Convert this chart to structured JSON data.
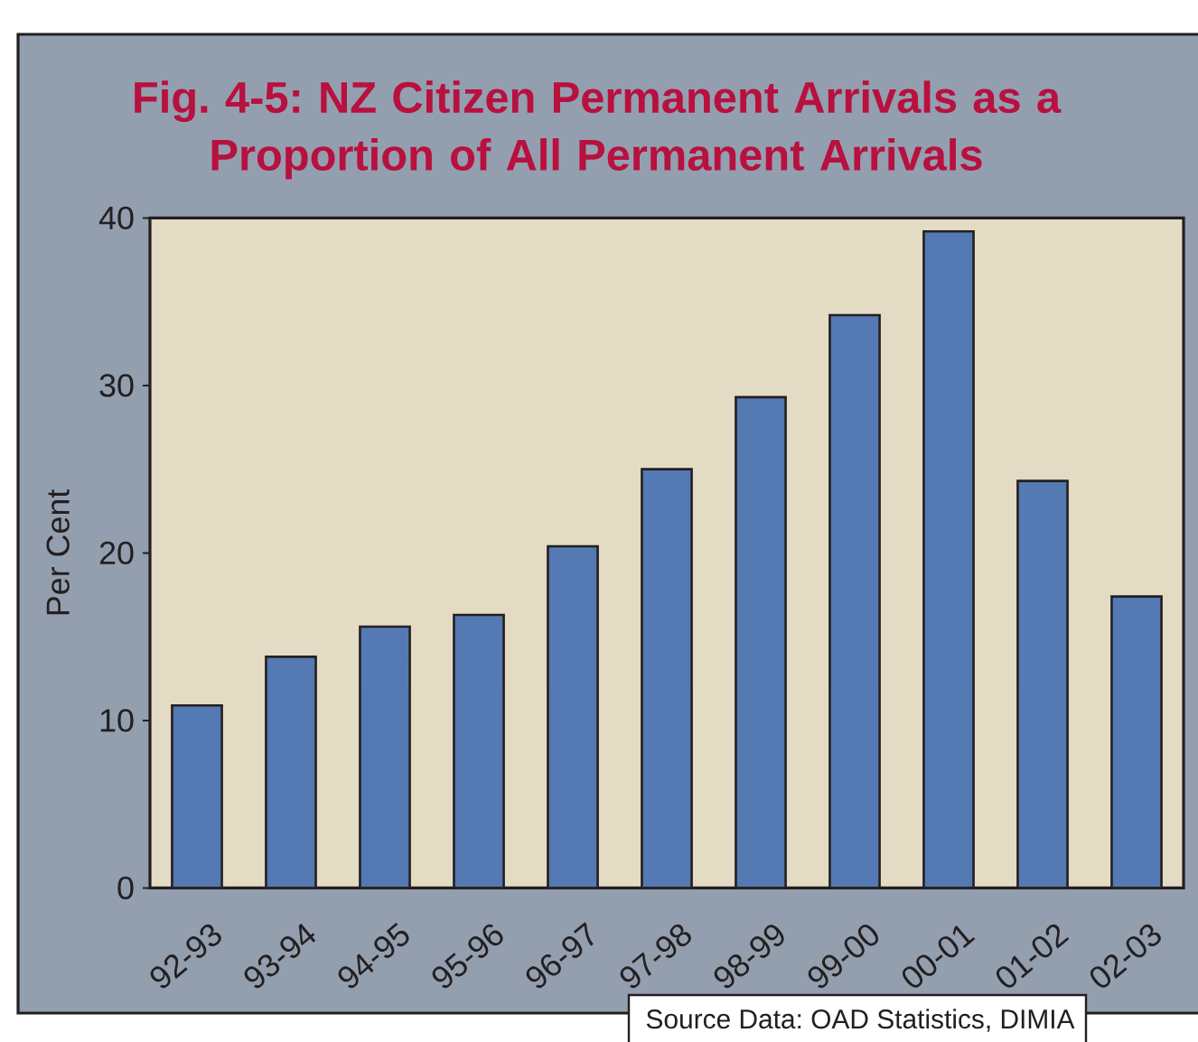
{
  "chart_data": {
    "type": "bar",
    "title": "Fig. 4-5: NZ Citizen Permanent Arrivals as a Proportion of All Permanent Arrivals",
    "ylabel": "Per Cent",
    "categories": [
      "92-93",
      "93-94",
      "94-95",
      "95-96",
      "96-97",
      "97-98",
      "98-99",
      "99-00",
      "00-01",
      "01-02",
      "02-03"
    ],
    "values": [
      10.9,
      13.8,
      15.6,
      16.3,
      20.4,
      25.0,
      29.3,
      34.2,
      39.2,
      24.3,
      17.4
    ],
    "color": "#5479b3",
    "ylim": [
      0,
      40
    ],
    "yticks": [
      0,
      10,
      20,
      30,
      40
    ],
    "annotations": [
      "Source Data: OAD Statistics, DIMIA"
    ]
  }
}
